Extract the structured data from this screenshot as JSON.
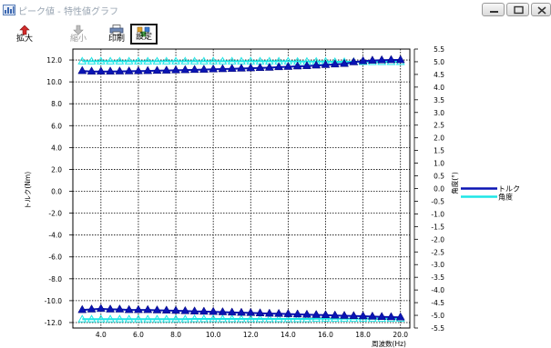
{
  "window": {
    "title": "ピーク値 - 特性値グラフ",
    "controls": [
      "minimize",
      "maximize",
      "close"
    ]
  },
  "toolbar": {
    "buttons": [
      {
        "label": "拡大",
        "icon": "zoom-in-icon",
        "enabled": true
      },
      {
        "label": "縮小",
        "icon": "zoom-out-icon",
        "enabled": false
      },
      {
        "label": "印刷",
        "icon": "printer-icon",
        "enabled": true
      },
      {
        "label": "設定",
        "icon": "settings-icon",
        "enabled": true,
        "active": true
      }
    ]
  },
  "colors": {
    "torque": "#0a14b4",
    "angle": "#1ee6e6",
    "grid": "#000000",
    "background": "#ffffff"
  },
  "chart_data": {
    "type": "line",
    "xlabel": "周波数(Hz)",
    "ylabel": "トルク(Nm)",
    "y2label": "角度(°)",
    "xlim": [
      2.5,
      20.5
    ],
    "ylim": [
      -12.5,
      13.0
    ],
    "y2lim": [
      -5.5,
      5.5
    ],
    "xticks": [
      "4.0",
      "6.0",
      "8.0",
      "10.0",
      "12.0",
      "14.0",
      "16.0",
      "18.0",
      "20.0"
    ],
    "yticks": [
      "12.0",
      "10.0",
      "8.0",
      "6.0",
      "4.0",
      "2.0",
      "0.0",
      "-2.0",
      "-4.0",
      "-6.0",
      "-8.0",
      "-10.0",
      "-12.0"
    ],
    "y2ticks": [
      "5.5",
      "5.0",
      "4.5",
      "4.0",
      "3.5",
      "3.0",
      "2.5",
      "2.0",
      "1.5",
      "1.0",
      "0.5",
      "0.0",
      "-0.5",
      "-1.0",
      "-1.5",
      "-2.0",
      "-2.5",
      "-3.0",
      "-3.5",
      "-4.0",
      "-4.5",
      "-5.0",
      "-5.5"
    ],
    "grid": true,
    "legend_position": "right",
    "x": [
      3.0,
      3.5,
      4.0,
      4.5,
      5.0,
      5.5,
      6.0,
      6.5,
      7.0,
      7.5,
      8.0,
      8.5,
      9.0,
      9.5,
      10.0,
      10.5,
      11.0,
      11.5,
      12.0,
      12.5,
      13.0,
      13.5,
      14.0,
      14.5,
      15.0,
      15.5,
      16.0,
      16.5,
      17.0,
      17.5,
      18.0,
      18.5,
      19.0,
      19.5,
      20.0
    ],
    "series": [
      {
        "name": "トルク",
        "axis": "left",
        "values_upper": [
          11.0,
          10.95,
          10.95,
          10.95,
          10.96,
          10.97,
          10.98,
          11.0,
          11.02,
          11.04,
          11.06,
          11.08,
          11.1,
          11.12,
          11.15,
          11.17,
          11.2,
          11.22,
          11.25,
          11.28,
          11.3,
          11.35,
          11.38,
          11.42,
          11.45,
          11.5,
          11.55,
          11.6,
          11.65,
          11.8,
          11.9,
          11.95,
          11.98,
          12.0,
          12.0
        ],
        "values_lower": [
          -10.85,
          -10.8,
          -10.75,
          -10.8,
          -10.8,
          -10.85,
          -10.85,
          -10.85,
          -10.88,
          -10.9,
          -10.92,
          -10.95,
          -10.98,
          -11.0,
          -11.02,
          -11.05,
          -11.08,
          -11.1,
          -11.12,
          -11.15,
          -11.18,
          -11.2,
          -11.22,
          -11.25,
          -11.28,
          -11.3,
          -11.32,
          -11.35,
          -11.38,
          -11.4,
          -11.42,
          -11.45,
          -11.48,
          -11.5,
          -11.52
        ]
      },
      {
        "name": "角度",
        "axis": "right",
        "values_upper": [
          5.02,
          5.02,
          5.02,
          5.02,
          5.02,
          5.02,
          5.02,
          5.02,
          5.02,
          5.02,
          5.02,
          5.02,
          5.02,
          5.02,
          5.02,
          5.02,
          5.02,
          5.02,
          5.02,
          5.02,
          5.02,
          5.02,
          5.02,
          5.01,
          5.01,
          5.01,
          5.01,
          5.0,
          5.0,
          5.0,
          5.0,
          5.0,
          5.0,
          5.0,
          5.0
        ],
        "values_lower": [
          -5.15,
          -5.15,
          -5.15,
          -5.15,
          -5.15,
          -5.15,
          -5.15,
          -5.15,
          -5.15,
          -5.15,
          -5.15,
          -5.15,
          -5.14,
          -5.14,
          -5.14,
          -5.14,
          -5.14,
          -5.14,
          -5.14,
          -5.14,
          -5.14,
          -5.14,
          -5.14,
          -5.14,
          -5.14,
          -5.13,
          -5.13,
          -5.13,
          -5.13,
          -5.13,
          -5.13,
          -5.13,
          -5.13,
          -5.13,
          -5.13
        ]
      }
    ]
  }
}
